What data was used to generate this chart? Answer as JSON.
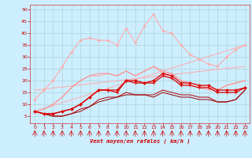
{
  "xlabel": "Vent moyen/en rafales ( km/h )",
  "bg_color": "#cceeff",
  "grid_color": "#aacccc",
  "xlim": [
    -0.5,
    23.5
  ],
  "ylim": [
    2,
    52
  ],
  "yticks": [
    5,
    10,
    15,
    20,
    25,
    30,
    35,
    40,
    45,
    50
  ],
  "xticks": [
    0,
    1,
    2,
    3,
    4,
    5,
    6,
    7,
    8,
    9,
    10,
    11,
    12,
    13,
    14,
    15,
    16,
    17,
    18,
    19,
    20,
    21,
    22,
    23
  ],
  "series": [
    {
      "x": [
        0,
        1,
        2,
        3,
        4,
        5,
        6,
        7,
        8,
        9,
        10,
        11,
        12,
        13,
        14,
        15,
        16,
        17,
        18,
        19,
        20,
        21,
        22,
        23
      ],
      "y": [
        12,
        16,
        20,
        26,
        32,
        37,
        38,
        37,
        37,
        35,
        42,
        36,
        43,
        48,
        41,
        40,
        35,
        31,
        29,
        27,
        26,
        30,
        33,
        35
      ],
      "color": "#ffaaaa",
      "lw": 0.8,
      "marker": "D",
      "ms": 1.5,
      "zorder": 2
    },
    {
      "x": [
        0,
        1,
        2,
        3,
        4,
        5,
        6,
        7,
        8,
        9,
        10,
        11,
        12,
        13,
        14,
        15,
        16,
        17,
        18,
        19,
        20,
        21,
        22,
        23
      ],
      "y": [
        7,
        8,
        10,
        13,
        17,
        20,
        22,
        22,
        23,
        22,
        24,
        22,
        24,
        26,
        23,
        23,
        20,
        18,
        17,
        16,
        16,
        18,
        19,
        20
      ],
      "color": "#ffaaaa",
      "lw": 0.8,
      "marker": null,
      "ms": 0,
      "zorder": 2
    },
    {
      "x": [
        0,
        1,
        2,
        3,
        4,
        5,
        6,
        7,
        8,
        9,
        10,
        11,
        12,
        13,
        14,
        15,
        16,
        17,
        18,
        19,
        20,
        21,
        22,
        23
      ],
      "y": [
        7,
        8,
        10,
        13,
        17,
        20,
        22,
        23,
        23,
        22,
        24,
        22,
        24,
        26,
        24,
        23,
        20,
        19,
        18,
        17,
        16,
        18,
        19,
        20
      ],
      "color": "#ff8888",
      "lw": 0.7,
      "marker": null,
      "ms": 0,
      "zorder": 3
    },
    {
      "x": [
        0,
        23
      ],
      "y": [
        7,
        35
      ],
      "color": "#ffaaaa",
      "lw": 0.7,
      "marker": null,
      "ms": 0,
      "zorder": 2
    },
    {
      "x": [
        0,
        23
      ],
      "y": [
        16,
        26
      ],
      "color": "#ffaaaa",
      "lw": 0.7,
      "marker": null,
      "ms": 0,
      "zorder": 2
    },
    {
      "x": [
        0,
        1,
        2,
        3,
        4,
        5,
        6,
        7,
        8,
        9,
        10,
        11,
        12,
        13,
        14,
        15,
        16,
        17,
        18,
        19,
        20,
        21,
        22,
        23
      ],
      "y": [
        7,
        6,
        6,
        7,
        8,
        10,
        13,
        16,
        16,
        16,
        20,
        20,
        19,
        20,
        23,
        22,
        19,
        19,
        18,
        18,
        16,
        16,
        16,
        17
      ],
      "color": "#dd0000",
      "lw": 0.9,
      "marker": "D",
      "ms": 1.8,
      "zorder": 5
    },
    {
      "x": [
        0,
        1,
        2,
        3,
        4,
        5,
        6,
        7,
        8,
        9,
        10,
        11,
        12,
        13,
        14,
        15,
        16,
        17,
        18,
        19,
        20,
        21,
        22,
        23
      ],
      "y": [
        7,
        6,
        6,
        7,
        8,
        10,
        13,
        16,
        16,
        15,
        20,
        19,
        19,
        19,
        22,
        21,
        18,
        18,
        17,
        17,
        15,
        15,
        15,
        17
      ],
      "color": "#dd0000",
      "lw": 0.9,
      "marker": "+",
      "ms": 2.5,
      "zorder": 5
    },
    {
      "x": [
        0,
        1,
        2,
        3,
        4,
        5,
        6,
        7,
        8,
        9,
        10,
        11,
        12,
        13,
        14,
        15,
        16,
        17,
        18,
        19,
        20,
        21,
        22,
        23
      ],
      "y": [
        7,
        6,
        5,
        5,
        6,
        8,
        9,
        12,
        13,
        13,
        15,
        14,
        14,
        14,
        16,
        15,
        14,
        14,
        13,
        13,
        11,
        11,
        12,
        16
      ],
      "color": "#bb0000",
      "lw": 0.7,
      "marker": null,
      "ms": 0,
      "zorder": 4
    },
    {
      "x": [
        0,
        1,
        2,
        3,
        4,
        5,
        6,
        7,
        8,
        9,
        10,
        11,
        12,
        13,
        14,
        15,
        16,
        17,
        18,
        19,
        20,
        21,
        22,
        23
      ],
      "y": [
        7,
        6,
        5,
        5,
        6,
        7,
        9,
        11,
        12,
        13,
        14,
        14,
        14,
        13,
        15,
        14,
        13,
        13,
        12,
        12,
        11,
        11,
        12,
        16
      ],
      "color": "#990000",
      "lw": 0.7,
      "marker": null,
      "ms": 0,
      "zorder": 4
    }
  ],
  "arrows": [
    0,
    1,
    2,
    3,
    4,
    5,
    6,
    7,
    8,
    9,
    10,
    11,
    12,
    13,
    14,
    15,
    16,
    17,
    18,
    19,
    20,
    21,
    22,
    23
  ]
}
